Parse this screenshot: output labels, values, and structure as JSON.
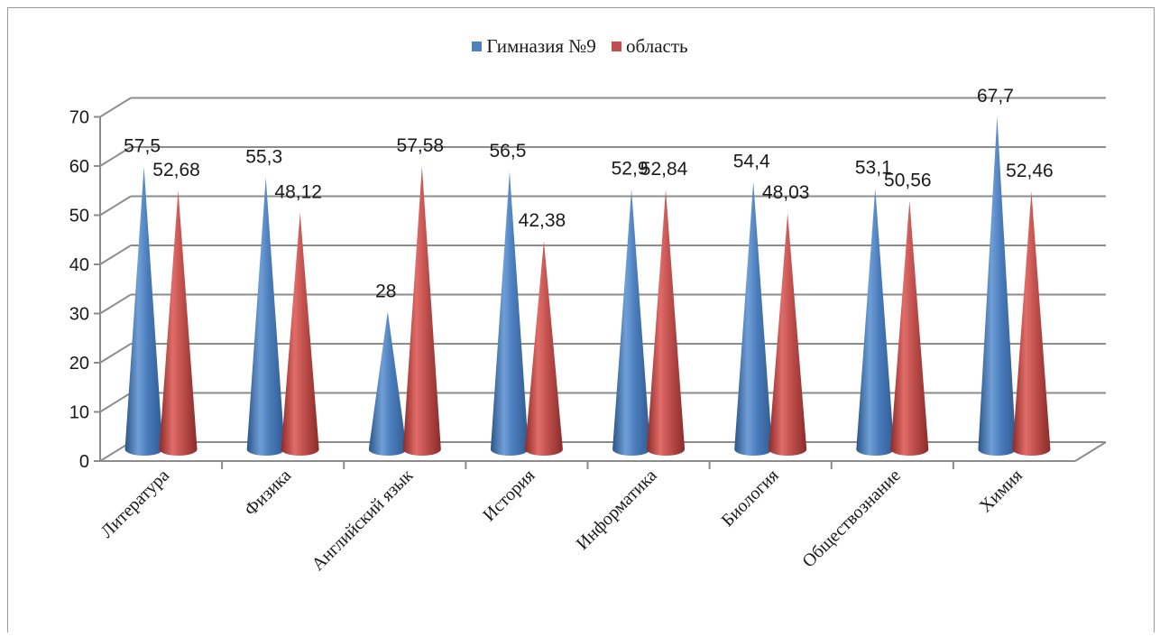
{
  "chart_data": {
    "type": "bar",
    "subtype": "3d-cone",
    "categories": [
      "Литература",
      "Физика",
      "Английский язык",
      "История",
      "Информатика",
      "Биология",
      "Обществознание",
      "Химия"
    ],
    "series": [
      {
        "name": "Гимназия №9",
        "values": [
          57.5,
          55.3,
          28,
          56.5,
          52.9,
          54.4,
          53.1,
          67.7
        ],
        "labels": [
          "57,5",
          "55,3",
          "28",
          "56,5",
          "52,9",
          "54,4",
          "53,1",
          "67,7"
        ],
        "color": "#4f81bd"
      },
      {
        "name": "область",
        "values": [
          52.68,
          48.12,
          57.58,
          42.38,
          52.84,
          48.03,
          50.56,
          52.46
        ],
        "labels": [
          "52,68",
          "48,12",
          "57,58",
          "42,38",
          "52,84",
          "48,03",
          "50,56",
          "52,46"
        ],
        "color": "#c0504d"
      }
    ],
    "ylim": [
      0,
      70
    ],
    "yticks": [
      "0",
      "10",
      "20",
      "30",
      "40",
      "50",
      "60",
      "70"
    ],
    "grid": true,
    "legend_position": "top"
  }
}
